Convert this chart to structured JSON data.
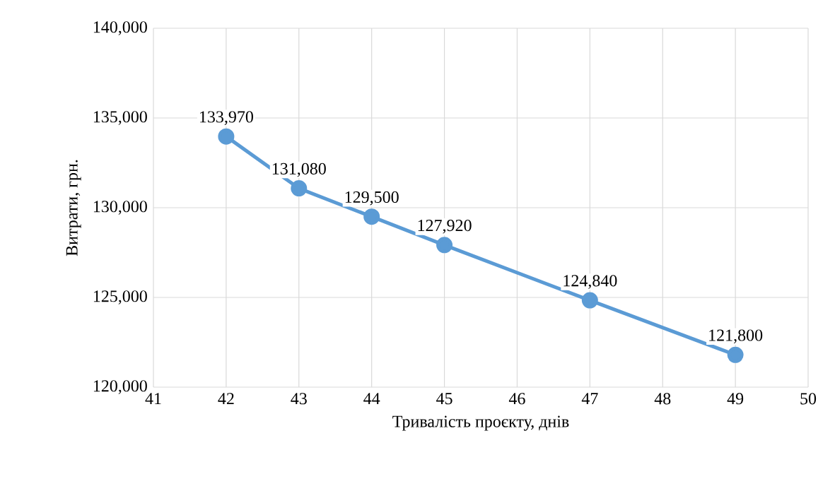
{
  "chart_data": {
    "type": "line",
    "xlabel": "Тривалість проєкту, днів",
    "ylabel": "Витрати, грн.",
    "x": [
      42,
      43,
      44,
      45,
      47,
      49
    ],
    "series": [
      {
        "color": "#5b9bd5",
        "values": [
          133970,
          131080,
          129500,
          127920,
          124840,
          121800
        ],
        "value_labels": [
          "133,970",
          "131,080",
          "129,500",
          "127,920",
          "124,840",
          "121,800"
        ]
      }
    ],
    "xlim": [
      41,
      50
    ],
    "xticks": [
      41,
      42,
      43,
      44,
      45,
      46,
      47,
      48,
      49,
      50
    ],
    "ylim": [
      120000,
      140000
    ],
    "yticks": [
      {
        "value": 120000,
        "label": "120,000"
      },
      {
        "value": 125000,
        "label": "125,000"
      },
      {
        "value": 130000,
        "label": "130,000"
      },
      {
        "value": 135000,
        "label": "135,000"
      },
      {
        "value": 140000,
        "label": "140,000"
      }
    ],
    "grid": true,
    "marker": "circle",
    "line_style": "solid"
  }
}
